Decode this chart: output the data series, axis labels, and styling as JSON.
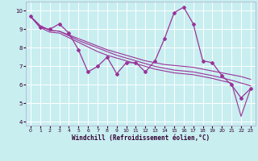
{
  "xlabel": "Windchill (Refroidissement éolien,°C)",
  "bg_color": "#c8eef0",
  "line_color": "#993399",
  "grid_color": "#ffffff",
  "xlim": [
    -0.5,
    23.5
  ],
  "ylim": [
    3.8,
    10.5
  ],
  "yticks": [
    4,
    5,
    6,
    7,
    8,
    9,
    10
  ],
  "xticks": [
    0,
    1,
    2,
    3,
    4,
    5,
    6,
    7,
    8,
    9,
    10,
    11,
    12,
    13,
    14,
    15,
    16,
    17,
    18,
    19,
    20,
    21,
    22,
    23
  ],
  "x_hours": [
    0,
    1,
    2,
    3,
    4,
    5,
    6,
    7,
    8,
    9,
    10,
    11,
    12,
    13,
    14,
    15,
    16,
    17,
    18,
    19,
    20,
    21,
    22,
    23
  ],
  "line_zigzag": [
    9.7,
    9.1,
    9.0,
    9.3,
    8.8,
    7.9,
    6.7,
    7.0,
    7.5,
    6.6,
    7.2,
    7.2,
    6.7,
    7.3,
    8.5,
    9.9,
    10.2,
    9.3,
    7.3,
    7.2,
    6.5,
    6.0,
    5.3,
    5.8
  ],
  "line_trend1": [
    9.7,
    9.2,
    8.95,
    8.9,
    8.7,
    8.5,
    8.3,
    8.1,
    7.9,
    7.75,
    7.6,
    7.45,
    7.3,
    7.2,
    7.1,
    7.05,
    7.0,
    6.95,
    6.85,
    6.75,
    6.65,
    6.55,
    6.45,
    6.3
  ],
  "line_trend2": [
    9.7,
    9.2,
    8.95,
    8.9,
    8.65,
    8.4,
    8.2,
    8.0,
    7.8,
    7.6,
    7.45,
    7.3,
    7.15,
    7.0,
    6.9,
    6.8,
    6.75,
    6.7,
    6.6,
    6.5,
    6.38,
    6.25,
    6.1,
    5.95
  ],
  "line_trend3": [
    9.7,
    9.1,
    8.85,
    8.8,
    8.55,
    8.3,
    8.05,
    7.8,
    7.6,
    7.45,
    7.3,
    7.15,
    7.0,
    6.85,
    6.75,
    6.65,
    6.6,
    6.55,
    6.45,
    6.35,
    6.22,
    6.1,
    4.3,
    5.8
  ]
}
